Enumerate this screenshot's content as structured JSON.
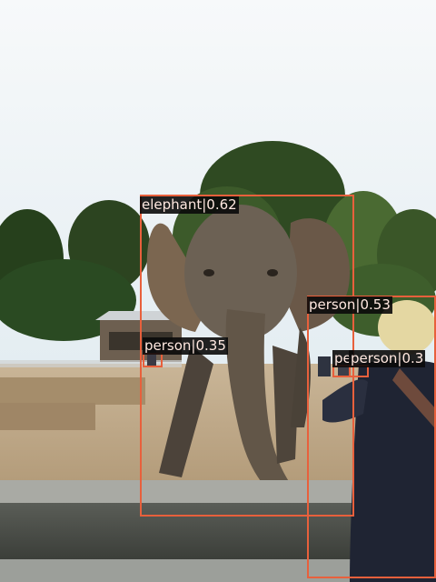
{
  "detections": [
    {
      "label": "elephant|0.62",
      "class": "elephant",
      "score": 0.62
    },
    {
      "label": "person|0.53",
      "class": "person",
      "score": 0.53
    },
    {
      "label": "person|0.35",
      "class": "person",
      "score": 0.35
    },
    {
      "label": "pe",
      "class": "person",
      "score": null
    },
    {
      "label": "person|0.3",
      "class": "person",
      "score": 0.3
    }
  ],
  "colors": {
    "box": "#e8603c",
    "label_bg": "#0a0a0a",
    "label_text": "#ffe8e0"
  }
}
